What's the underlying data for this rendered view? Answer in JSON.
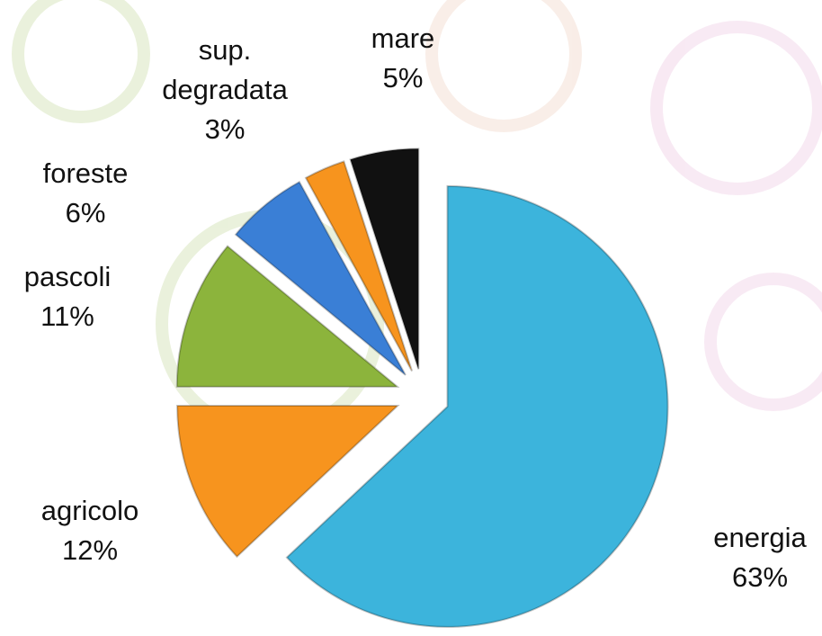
{
  "chart_data": {
    "type": "pie",
    "categories": [
      "energia",
      "agricolo",
      "pascoli",
      "foreste",
      "sup. degradata",
      "mare"
    ],
    "values": [
      63,
      12,
      11,
      6,
      3,
      5
    ],
    "value_labels": [
      "63%",
      "12%",
      "11%",
      "6%",
      "3%",
      "5%"
    ],
    "colors": [
      "#3cb4dc",
      "#f7941e",
      "#8cb43c",
      "#3a7fd6",
      "#f7941e",
      "#111111"
    ],
    "exploded": true
  }
}
